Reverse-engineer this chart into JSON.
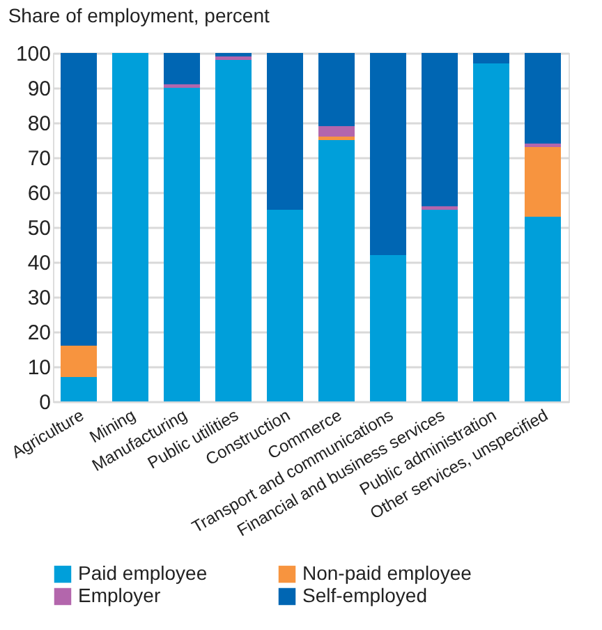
{
  "chart_data": {
    "type": "bar",
    "stacked": true,
    "title": "Share of employment, percent",
    "categories": [
      "Agriculture",
      "Mining",
      "Manufacturing",
      "Public utilities",
      "Construction",
      "Commerce",
      "Transport and communications",
      "Financial and business services",
      "Public administration",
      "Other services, unspecified"
    ],
    "series": [
      {
        "name": "Paid employee",
        "color": "#009fda",
        "values": [
          7,
          100,
          90,
          98,
          55,
          75,
          42,
          55,
          97,
          53
        ]
      },
      {
        "name": "Non-paid employee",
        "color": "#f7943f",
        "values": [
          9,
          0,
          0,
          0,
          0,
          1,
          0,
          0,
          0,
          20
        ]
      },
      {
        "name": "Employer",
        "color": "#b366ac",
        "values": [
          0,
          0,
          1,
          1,
          0,
          3,
          0,
          1,
          0,
          1
        ]
      },
      {
        "name": "Self-employed",
        "color": "#0066b3",
        "values": [
          84,
          0,
          9,
          1,
          45,
          21,
          58,
          44,
          3,
          26
        ]
      }
    ],
    "ylim": [
      0,
      100
    ],
    "yticks": [
      0,
      10,
      20,
      30,
      40,
      50,
      60,
      70,
      80,
      90,
      100
    ],
    "grid": "y",
    "legend": "bottom"
  }
}
